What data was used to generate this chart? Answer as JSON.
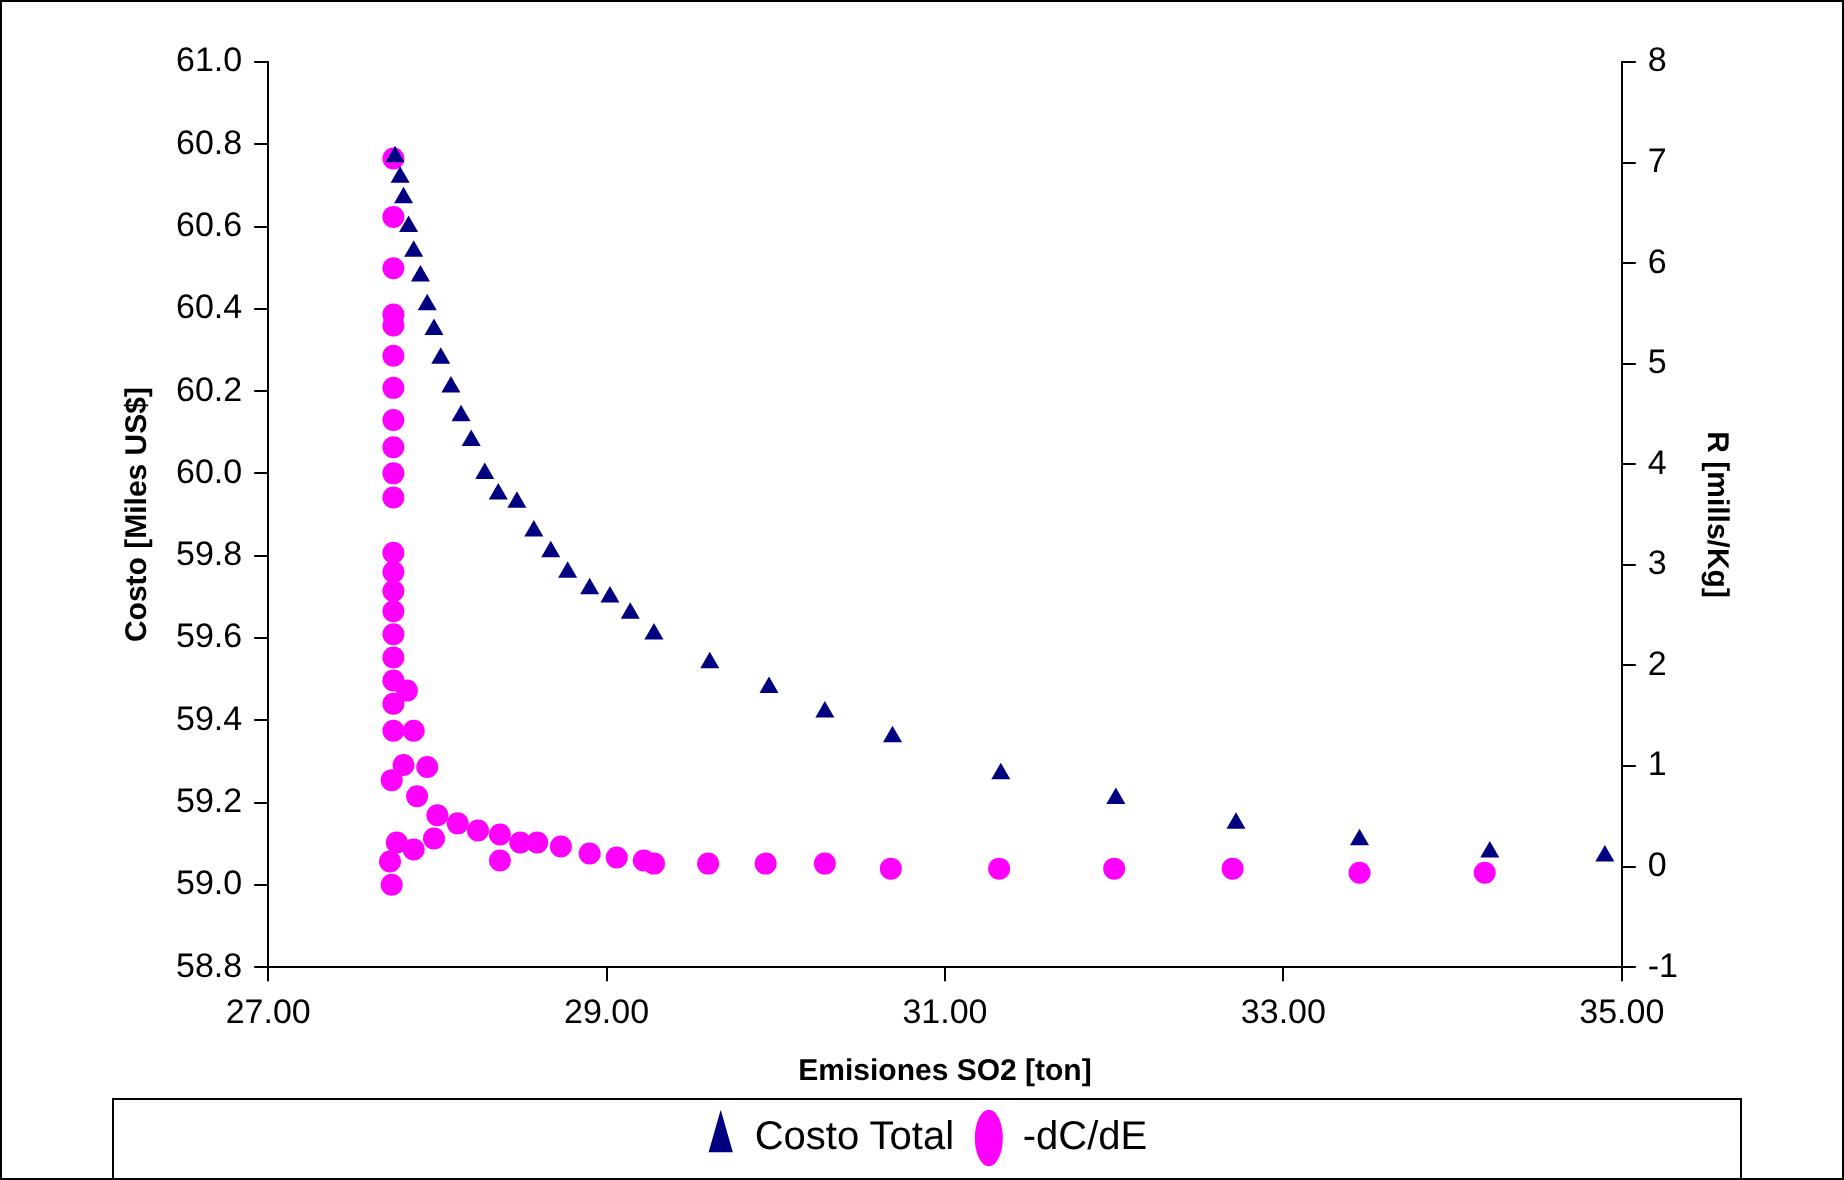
{
  "chart_data": {
    "type": "scatter",
    "xlabel": "Emisiones SO2 [ton]",
    "ylabel": "Costo [Miles US$]",
    "y2label": "R [mills/Kg]",
    "xlim": [
      27,
      35
    ],
    "xticks": [
      {
        "value": 27,
        "label": "27.00"
      },
      {
        "value": 29,
        "label": "29.00"
      },
      {
        "value": 31,
        "label": "31.00"
      },
      {
        "value": 33,
        "label": "33.00"
      },
      {
        "value": 35,
        "label": "35.00"
      }
    ],
    "ylim": [
      58.8,
      61.0
    ],
    "yticks": [
      {
        "value": 58.8,
        "label": "58.8"
      },
      {
        "value": 59.0,
        "label": "59.0"
      },
      {
        "value": 59.2,
        "label": "59.2"
      },
      {
        "value": 59.4,
        "label": "59.4"
      },
      {
        "value": 59.6,
        "label": "59.6"
      },
      {
        "value": 59.8,
        "label": "59.8"
      },
      {
        "value": 60.0,
        "label": "60.0"
      },
      {
        "value": 60.2,
        "label": "60.2"
      },
      {
        "value": 60.4,
        "label": "60.4"
      },
      {
        "value": 60.6,
        "label": "60.6"
      },
      {
        "value": 60.8,
        "label": "60.8"
      },
      {
        "value": 61.0,
        "label": "61.0"
      }
    ],
    "y2lim": [
      -1,
      8
    ],
    "y2ticks": [
      -1,
      0,
      1,
      2,
      3,
      4,
      5,
      6,
      7,
      8
    ],
    "grid": false,
    "legend": "bottom",
    "series": [
      {
        "name": "Costo Total",
        "type": "scatter",
        "marker": "triangle",
        "color": "#000080",
        "x": [
          27.75,
          27.78,
          27.8,
          27.83,
          27.86,
          27.9,
          27.94,
          27.98,
          28.02,
          28.08,
          28.14,
          28.2,
          28.28,
          28.36,
          28.47,
          28.57,
          28.67,
          28.77,
          28.9,
          29.02,
          29.14,
          29.28,
          29.61,
          29.96,
          30.29,
          30.69,
          31.33,
          32.01,
          32.72,
          33.45,
          34.22,
          34.9
        ],
        "values": [
          60.77,
          60.72,
          60.67,
          60.6,
          60.54,
          60.48,
          60.41,
          60.35,
          60.28,
          60.21,
          60.14,
          60.08,
          60.0,
          59.95,
          59.93,
          59.86,
          59.81,
          59.76,
          59.72,
          59.7,
          59.66,
          59.61,
          59.54,
          59.48,
          59.42,
          59.36,
          59.27,
          59.21,
          59.15,
          59.11,
          59.08,
          59.07
        ]
      },
      {
        "name": "-dC/dE",
        "type": "scatter",
        "marker": "circle",
        "color": "#ff00ff",
        "axis": "y2",
        "x": [
          27.74,
          27.74,
          27.74,
          27.74,
          27.74,
          27.74,
          27.74,
          27.74,
          27.74,
          27.74,
          27.74,
          27.74,
          27.74,
          27.74,
          27.74,
          27.74,
          27.74,
          27.74,
          27.74,
          27.74,
          27.82,
          27.86,
          27.73,
          27.8,
          27.94,
          27.88,
          28.0,
          28.12,
          28.24,
          28.37,
          28.49,
          28.37,
          28.59,
          28.73,
          28.9,
          29.06,
          29.22,
          29.28,
          27.76,
          27.86,
          27.72,
          27.73,
          27.98,
          29.6,
          29.94,
          30.29,
          30.68,
          31.32,
          32.0,
          32.7,
          33.45,
          34.19
        ],
        "values": [
          7.04,
          6.46,
          5.95,
          5.49,
          5.38,
          5.08,
          4.76,
          4.44,
          4.17,
          3.91,
          3.67,
          3.12,
          2.93,
          2.74,
          2.54,
          2.31,
          2.08,
          1.85,
          1.62,
          1.35,
          1.75,
          1.35,
          0.86,
          1.01,
          0.99,
          0.7,
          0.51,
          0.43,
          0.36,
          0.32,
          0.24,
          0.06,
          0.24,
          0.2,
          0.13,
          0.09,
          0.06,
          0.03,
          0.24,
          0.17,
          0.05,
          -0.18,
          0.28,
          0.03,
          0.03,
          0.03,
          -0.02,
          -0.02,
          -0.02,
          -0.02,
          -0.06,
          -0.06
        ]
      }
    ]
  }
}
